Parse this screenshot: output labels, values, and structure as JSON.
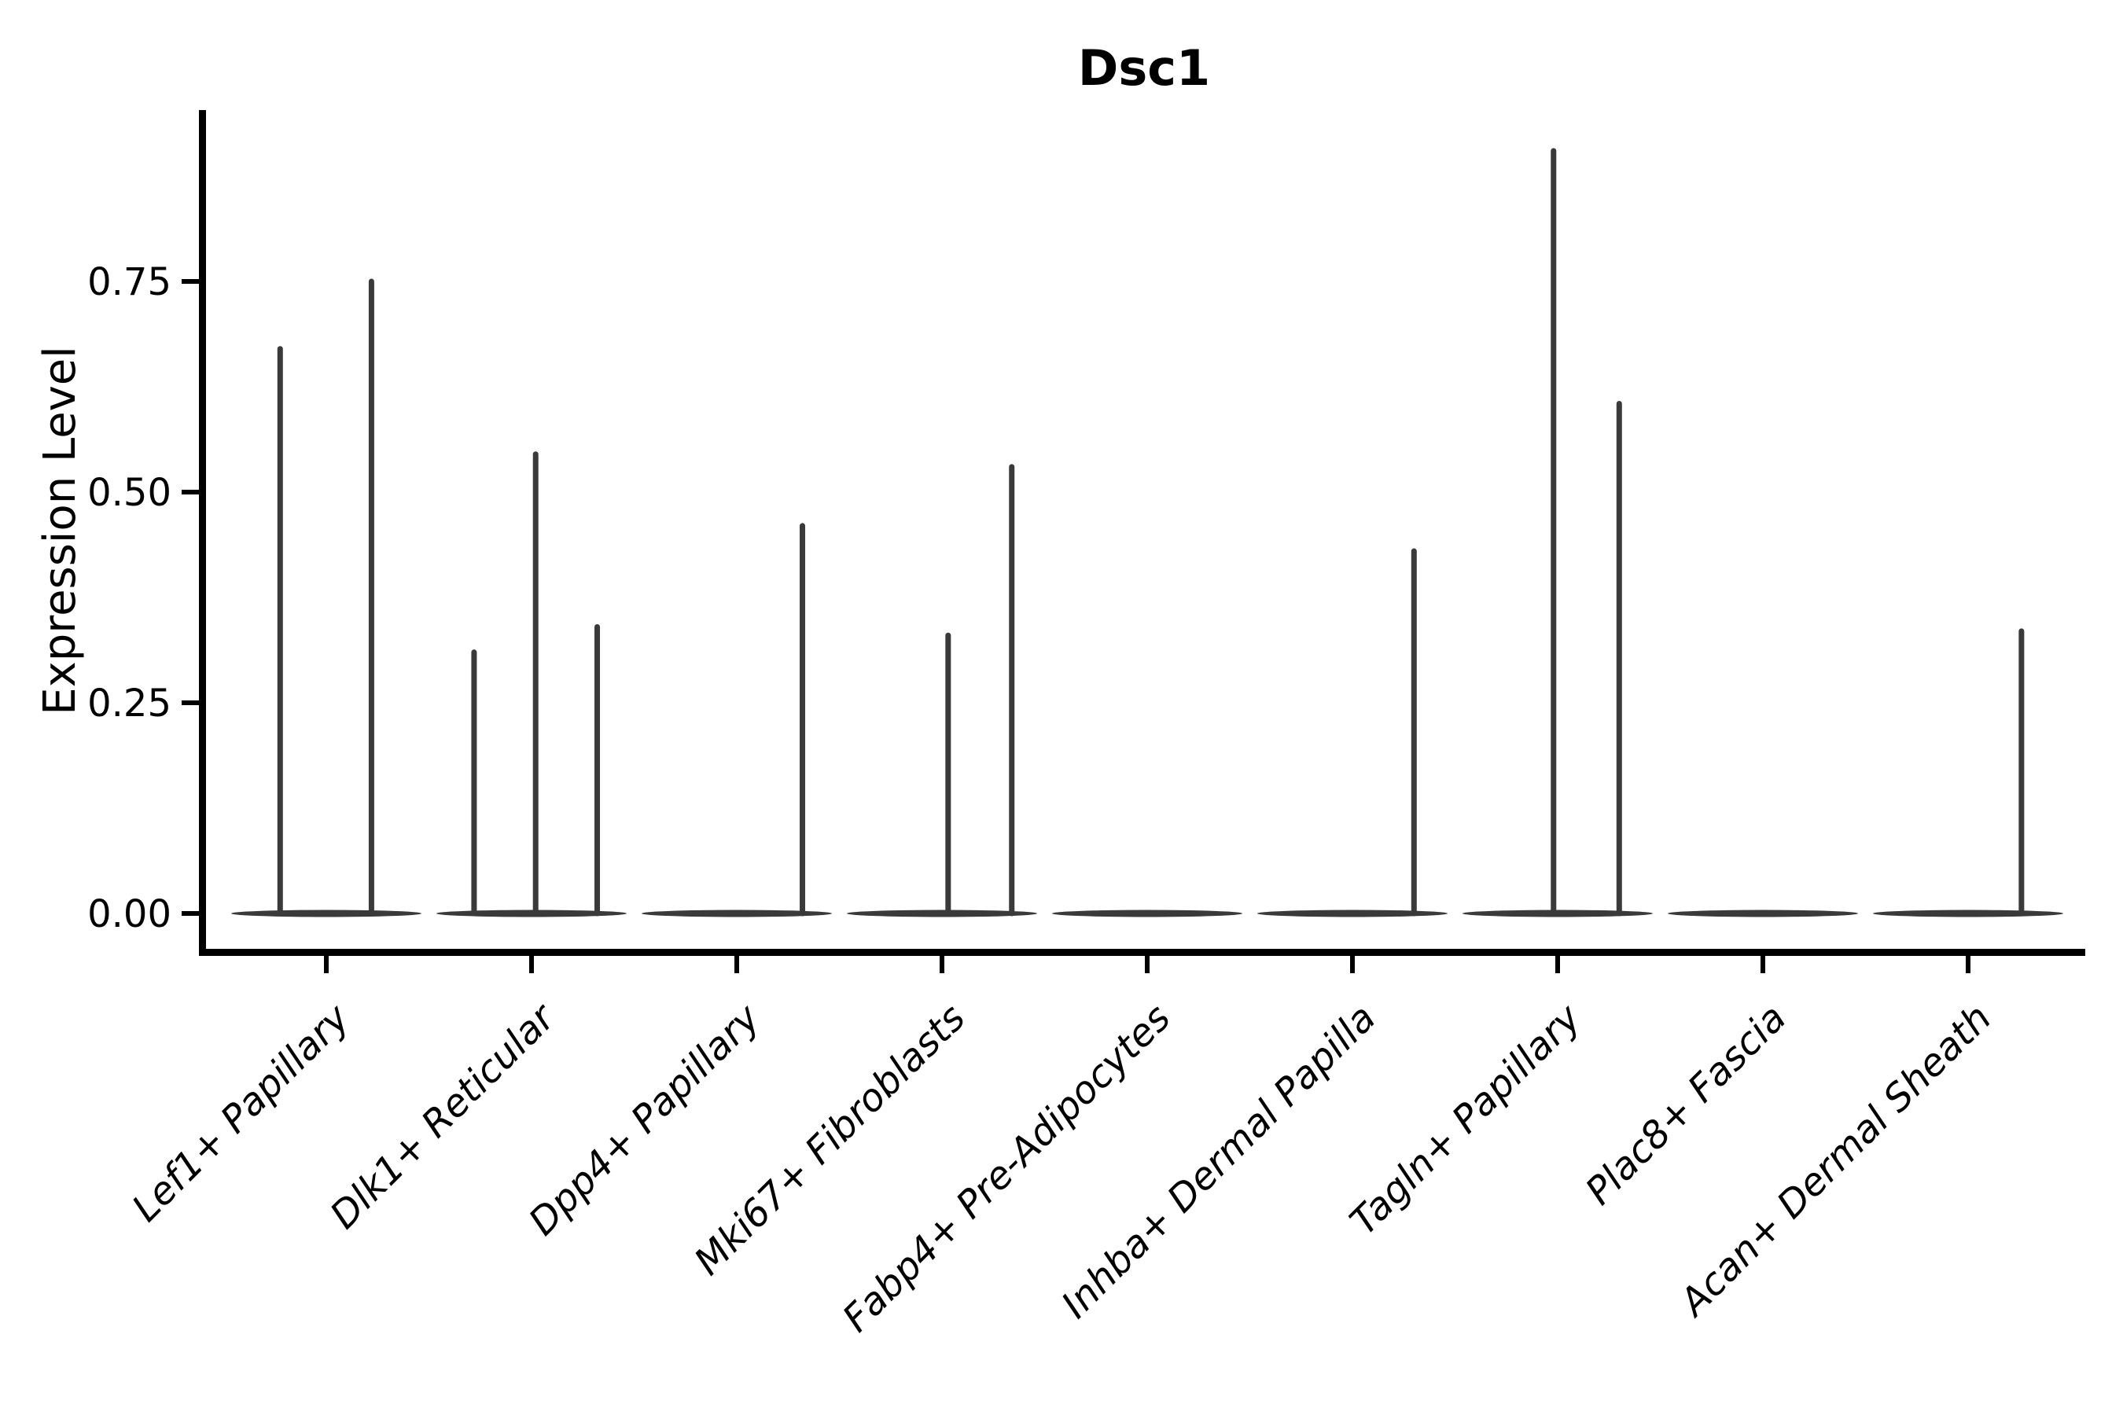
{
  "chart_data": {
    "type": "violin",
    "title": "Dsc1",
    "ylabel": "Expression Level",
    "xlabel": "",
    "background": "#ffffff",
    "grid": false,
    "legend": false,
    "ylim": [
      0,
      0.95
    ],
    "ytick_values": [
      0,
      0.25,
      0.5,
      0.75
    ],
    "ytick_labels": [
      "0.00",
      "0.25",
      "0.50",
      "0.75"
    ],
    "categories": [
      "Lef1+ Papillary",
      "Dlk1+ Reticular",
      "Dpp4+ Papillary",
      "Mki67+ Fibroblasts",
      "Fabp4+ Pre-Adipocytes",
      "Inhba+ Dermal Papilla",
      "Tagln+ Papillary",
      "Plac8+ Fascia",
      "Acan+ Dermal Sheath"
    ],
    "violins": [
      {
        "category": "Lef1+ Papillary",
        "baseline_value": 0,
        "spikes": [
          {
            "pos": -0.225,
            "max": 0.67
          },
          {
            "pos": 0.22,
            "max": 0.75
          }
        ]
      },
      {
        "category": "Dlk1+ Reticular",
        "baseline_value": 0,
        "spikes": [
          {
            "pos": -0.28,
            "max": 0.31
          },
          {
            "pos": 0.02,
            "max": 0.545
          },
          {
            "pos": 0.32,
            "max": 0.34
          }
        ]
      },
      {
        "category": "Dpp4+ Papillary",
        "baseline_value": 0,
        "spikes": [
          {
            "pos": 0.32,
            "max": 0.46
          }
        ]
      },
      {
        "category": "Mki67+ Fibroblasts",
        "baseline_value": 0,
        "spikes": [
          {
            "pos": 0.03,
            "max": 0.33
          },
          {
            "pos": 0.34,
            "max": 0.53
          }
        ]
      },
      {
        "category": "Fabp4+ Pre-Adipocytes",
        "baseline_value": 0,
        "spikes": []
      },
      {
        "category": "Inhba+ Dermal Papilla",
        "baseline_value": 0,
        "spikes": [
          {
            "pos": 0.3,
            "max": 0.43
          }
        ]
      },
      {
        "category": "Tagln+ Papillary",
        "baseline_value": 0,
        "spikes": [
          {
            "pos": -0.02,
            "max": 0.905
          },
          {
            "pos": 0.3,
            "max": 0.605
          }
        ]
      },
      {
        "category": "Plac8+ Fascia",
        "baseline_value": 0,
        "spikes": []
      },
      {
        "category": "Acan+ Dermal Sheath",
        "baseline_value": 0,
        "spikes": [
          {
            "pos": 0.26,
            "max": 0.335
          }
        ]
      }
    ],
    "colors": {
      "axis": "#000000",
      "text": "#000000",
      "violin": "#3a3a3a",
      "background": "#ffffff"
    }
  }
}
